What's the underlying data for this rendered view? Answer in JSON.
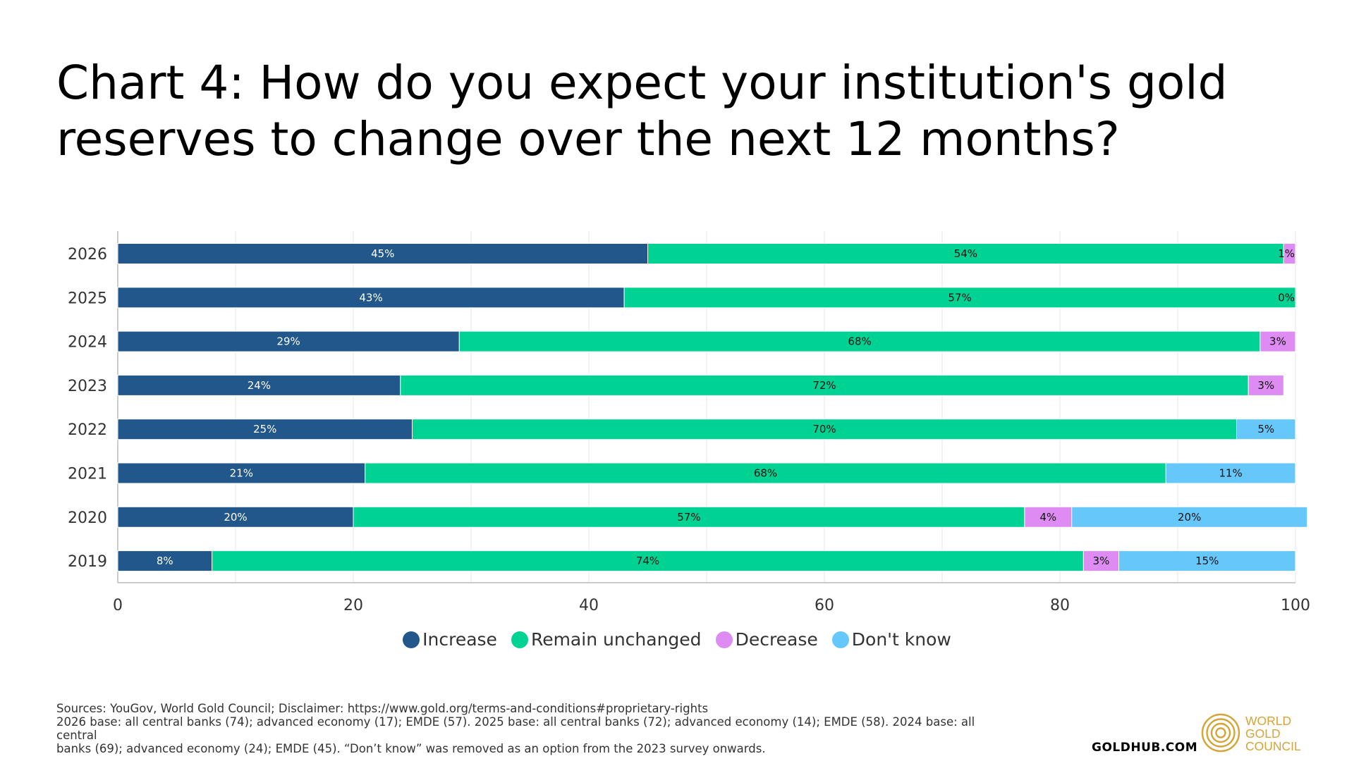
{
  "title_line1": "Chart 4: How do you expect your institution's gold",
  "title_line2": "reserves to change over the next 12 months?",
  "chart_data": {
    "type": "bar",
    "orientation": "horizontal",
    "stacked": true,
    "title": "Chart 4: How do you expect your institution's gold reserves to change over the next 12 months?",
    "categories": [
      "2026",
      "2025",
      "2024",
      "2023",
      "2022",
      "2021",
      "2020",
      "2019"
    ],
    "series": [
      {
        "name": "Increase",
        "color": "#21578a",
        "values": [
          45,
          43,
          29,
          24,
          25,
          21,
          20,
          8
        ],
        "labels": [
          "45%",
          "43%",
          "29%",
          "24%",
          "25%",
          "21%",
          "20%",
          "8%"
        ]
      },
      {
        "name": "Remain unchanged",
        "color": "#00d294",
        "values": [
          54,
          57,
          68,
          72,
          70,
          68,
          57,
          74
        ],
        "labels": [
          "54%",
          "57%",
          "68%",
          "72%",
          "70%",
          "68%",
          "57%",
          "74%"
        ]
      },
      {
        "name": "Decrease",
        "color": "#de8cf3",
        "values": [
          1,
          0,
          3,
          3,
          null,
          null,
          4,
          3
        ],
        "labels": [
          "1%",
          "0%",
          "3%",
          "3%",
          "",
          "",
          "4%",
          "3%"
        ]
      },
      {
        "name": "Don't know",
        "color": "#66c7fb",
        "values": [
          null,
          null,
          null,
          null,
          5,
          11,
          20,
          15
        ],
        "labels": [
          "",
          "",
          "",
          "",
          "5%",
          "11%",
          "20%",
          "15%"
        ]
      }
    ],
    "xlim": [
      0,
      100
    ],
    "xticks": [
      "0",
      "20",
      "40",
      "60",
      "80",
      "100"
    ],
    "grid": true,
    "legend_position": "bottom"
  },
  "footnote": {
    "line1": "Sources: YouGov, World Gold Council; Disclaimer: https://www.gold.org/terms-and-conditions#proprietary-rights",
    "line2": "2026 base: all central banks (74); advanced economy (17); EMDE (57). 2025 base: all central banks (72); advanced economy (14); EMDE (58). 2024 base: all central",
    "line3": "banks (69); advanced economy (24); EMDE (45). “Don’t know” was removed as an option from the 2023 survey onwards."
  },
  "branding": {
    "site": "GOLDHUB.COM",
    "logo_line1": "WORLD",
    "logo_line2": "GOLD",
    "logo_line3": "COUNCIL",
    "logo_color": "#d4a437"
  }
}
